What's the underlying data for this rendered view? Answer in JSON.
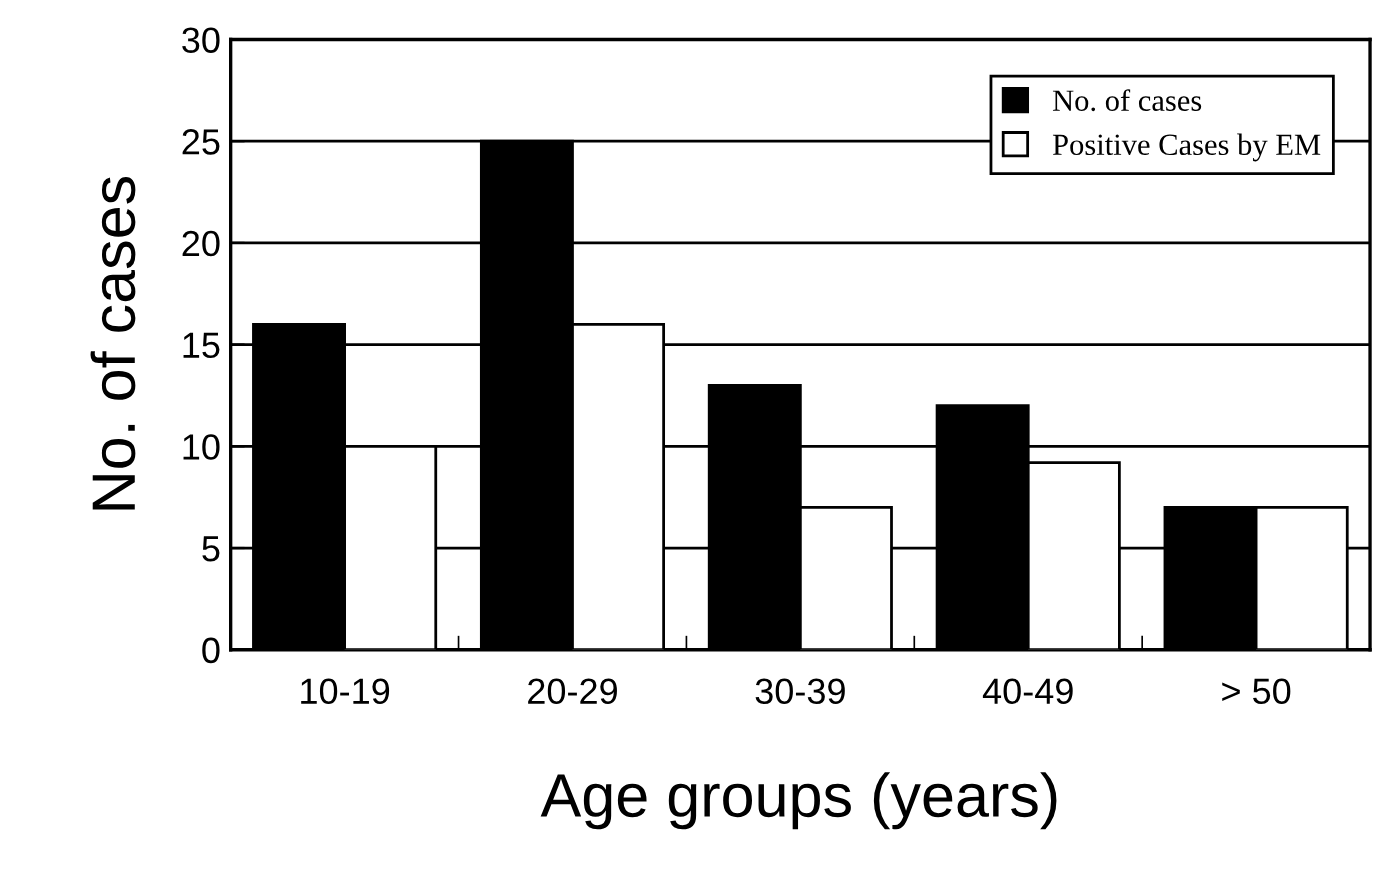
{
  "chart_data": {
    "type": "bar",
    "xlabel": "Age groups (years)",
    "ylabel": "No. of cases",
    "categories": [
      "10-19",
      "20-29",
      "30-39",
      "40-49",
      "> 50"
    ],
    "series": [
      {
        "name": "No. of cases",
        "color": "#000000",
        "values": [
          16,
          25,
          13,
          12,
          7
        ]
      },
      {
        "name": "Positive Cases by EM",
        "color": "#ffffff",
        "values": [
          10,
          16,
          7,
          9.2,
          7
        ]
      }
    ],
    "ylim": [
      0,
      30
    ],
    "yticks": [
      0,
      5,
      10,
      15,
      20,
      25,
      30
    ],
    "grid": "y",
    "legend": "top right"
  }
}
